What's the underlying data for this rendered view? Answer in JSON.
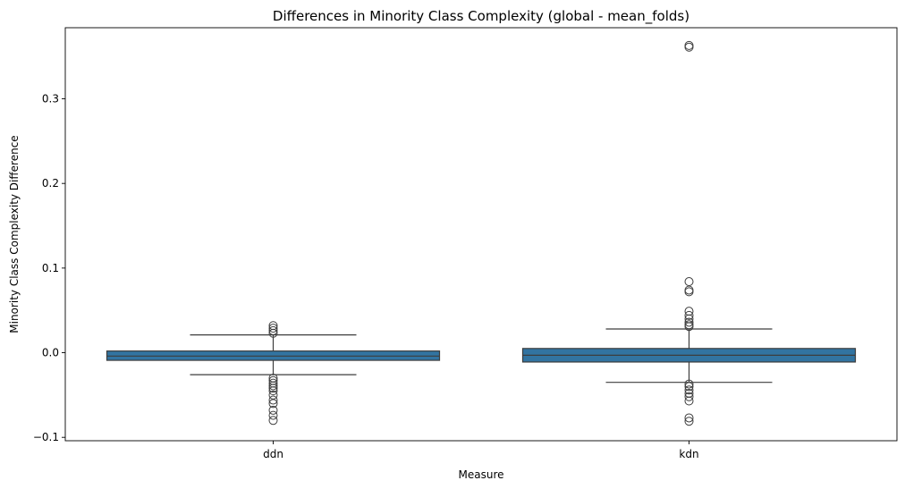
{
  "chart_data": {
    "type": "box",
    "title": "Differences in Minority Class Complexity (global - mean_folds)",
    "xlabel": "Measure",
    "ylabel": "Minority Class Complexity Difference",
    "categories": [
      "ddn",
      "kdn"
    ],
    "ylim": [
      -0.104,
      0.384
    ],
    "yticks": [
      -0.1,
      0.0,
      0.1,
      0.2,
      0.3
    ],
    "ytick_labels": [
      "−0.1",
      "0.0",
      "0.1",
      "0.2",
      "0.3"
    ],
    "grid": false,
    "box_color": "#3274a1",
    "boxes": [
      {
        "category": "ddn",
        "q1": -0.009,
        "median": -0.004,
        "q3": 0.002,
        "whisker_low": -0.026,
        "whisker_high": 0.021,
        "outliers": [
          0.032,
          0.029,
          0.026,
          0.023,
          -0.03,
          -0.033,
          -0.036,
          -0.039,
          -0.042,
          -0.045,
          -0.05,
          -0.056,
          -0.06,
          -0.068,
          -0.074,
          -0.08
        ]
      },
      {
        "category": "kdn",
        "q1": -0.011,
        "median": -0.003,
        "q3": 0.005,
        "whisker_low": -0.035,
        "whisker_high": 0.028,
        "outliers": [
          0.363,
          0.361,
          0.084,
          0.074,
          0.072,
          0.049,
          0.044,
          0.04,
          0.036,
          0.033,
          0.031,
          -0.037,
          -0.04,
          -0.044,
          -0.048,
          -0.052,
          -0.057,
          -0.077,
          -0.081
        ]
      }
    ]
  }
}
